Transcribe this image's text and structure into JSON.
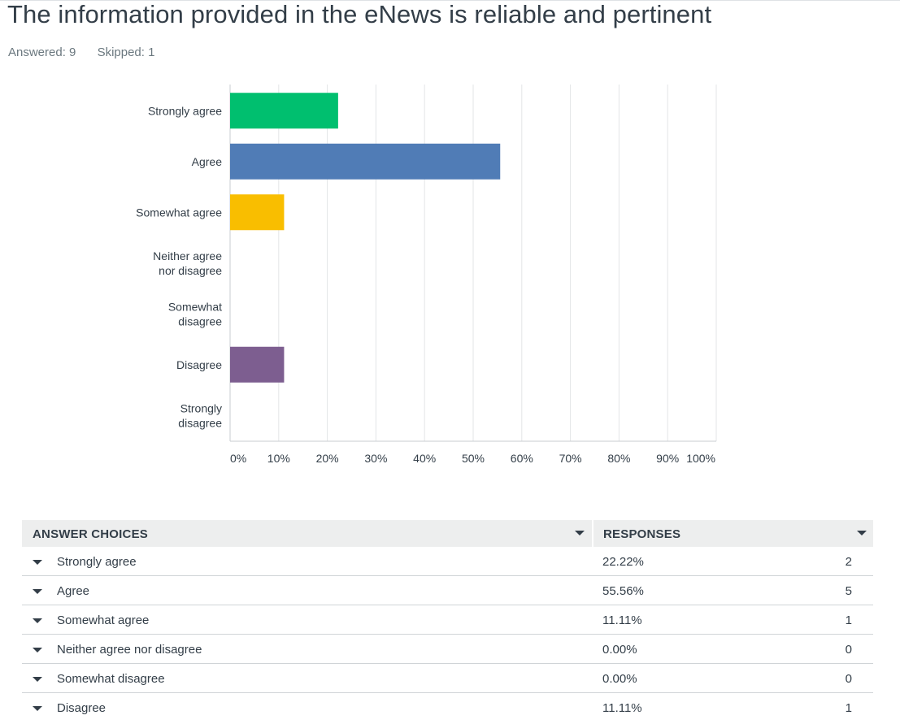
{
  "question": {
    "title": "The information provided in the eNews is reliable and pertinent",
    "answered_label": "Answered: 9",
    "skipped_label": "Skipped: 1"
  },
  "chart_data": {
    "type": "bar",
    "orientation": "horizontal",
    "categories": [
      "Strongly agree",
      "Agree",
      "Somewhat agree",
      "Neither agree nor disagree",
      "Somewhat disagree",
      "Disagree",
      "Strongly disagree"
    ],
    "category_lines": [
      [
        "Strongly agree"
      ],
      [
        "Agree"
      ],
      [
        "Somewhat agree"
      ],
      [
        "Neither agree",
        "nor disagree"
      ],
      [
        "Somewhat",
        "disagree"
      ],
      [
        "Disagree"
      ],
      [
        "Strongly",
        "disagree"
      ]
    ],
    "values": [
      22.22,
      55.56,
      11.11,
      0,
      0,
      11.11,
      0
    ],
    "colors": [
      "#00bf6f",
      "#507cb6",
      "#f9be00",
      "#6bc8cd",
      "#ff8b4f",
      "#7d5e90",
      "#d25f90"
    ],
    "xlim": [
      0,
      100
    ],
    "xticks": [
      "0%",
      "10%",
      "20%",
      "30%",
      "40%",
      "50%",
      "60%",
      "70%",
      "80%",
      "90%",
      "100%"
    ],
    "grid": true,
    "xlabel": "",
    "ylabel": ""
  },
  "table": {
    "headers": {
      "choices": "ANSWER CHOICES",
      "responses": "RESPONSES"
    },
    "rows": [
      {
        "label": "Strongly agree",
        "pct": "22.22%",
        "count": "2"
      },
      {
        "label": "Agree",
        "pct": "55.56%",
        "count": "5"
      },
      {
        "label": "Somewhat agree",
        "pct": "11.11%",
        "count": "1"
      },
      {
        "label": "Neither agree nor disagree",
        "pct": "0.00%",
        "count": "0"
      },
      {
        "label": "Somewhat disagree",
        "pct": "0.00%",
        "count": "0"
      },
      {
        "label": "Disagree",
        "pct": "11.11%",
        "count": "1"
      }
    ]
  }
}
